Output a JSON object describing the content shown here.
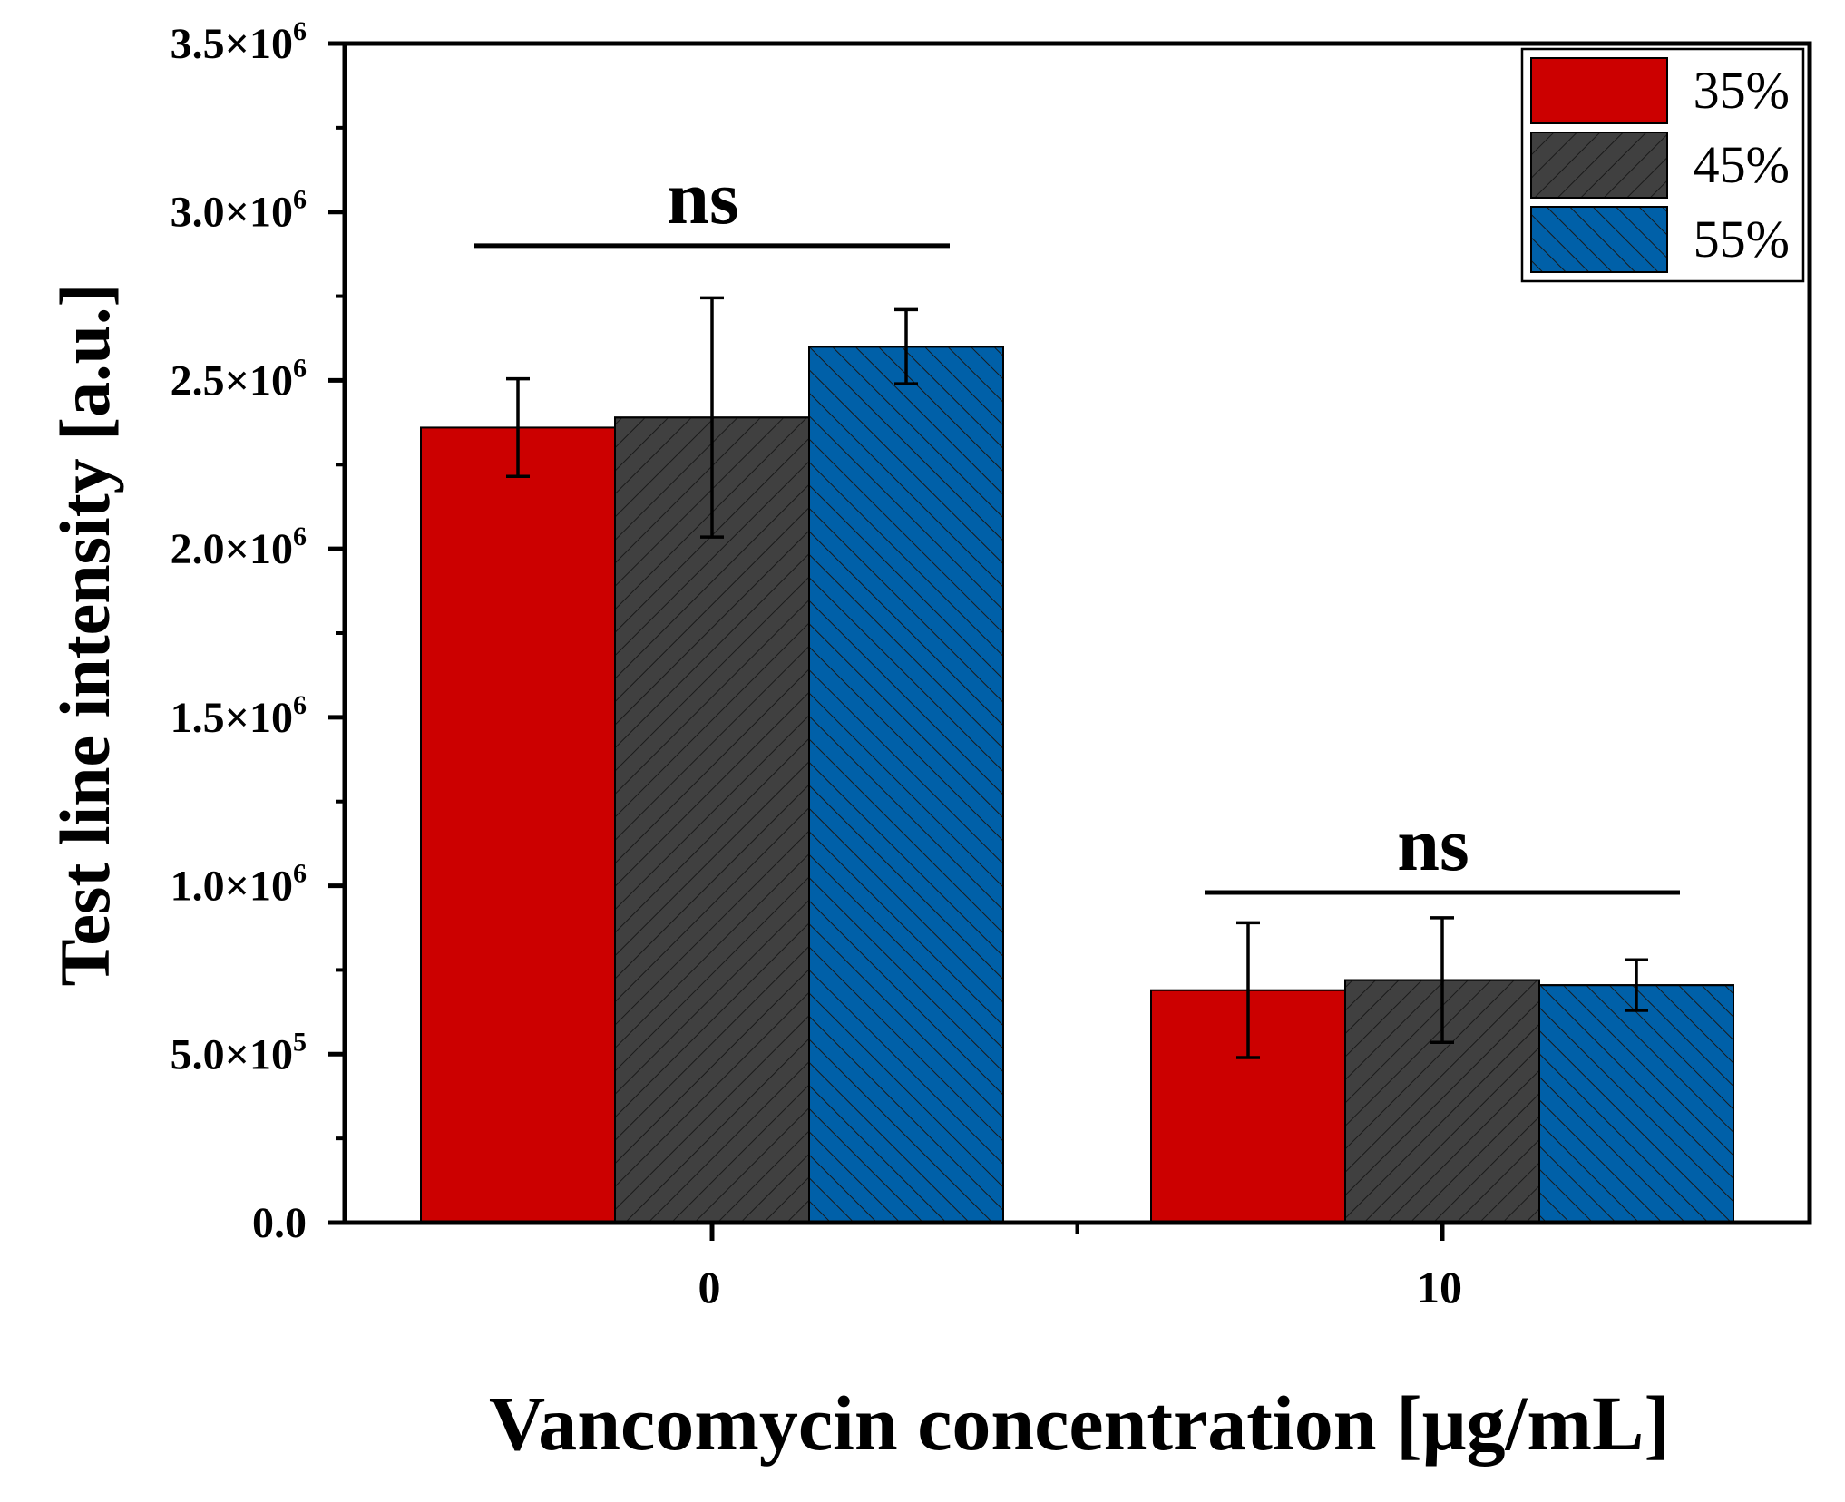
{
  "chart_data": {
    "type": "bar",
    "xlabel": "Vancomycin concentration [μg/mL]",
    "ylabel": "Test line intensity [a.u.]",
    "categories": [
      "0",
      "10"
    ],
    "ylim": [
      0,
      3500000
    ],
    "yticks": [
      {
        "value": 0,
        "mant": "0.0",
        "exp": ""
      },
      {
        "value": 500000,
        "mant": "5.0×10",
        "exp": "5"
      },
      {
        "value": 1000000,
        "mant": "1.0×10",
        "exp": "6"
      },
      {
        "value": 1500000,
        "mant": "1.5×10",
        "exp": "6"
      },
      {
        "value": 2000000,
        "mant": "2.0×10",
        "exp": "6"
      },
      {
        "value": 2500000,
        "mant": "2.5×10",
        "exp": "6"
      },
      {
        "value": 3000000,
        "mant": "3.0×10",
        "exp": "6"
      },
      {
        "value": 3500000,
        "mant": "3.5×10",
        "exp": "6"
      }
    ],
    "series": [
      {
        "name": "35%",
        "color": "#cc0000",
        "pattern": "none",
        "values": [
          2360000,
          690000
        ],
        "errors": [
          145000,
          200000
        ]
      },
      {
        "name": "45%",
        "color": "#404040",
        "pattern": "hatch-forward",
        "values": [
          2390000,
          720000
        ],
        "errors": [
          355000,
          185000
        ]
      },
      {
        "name": "55%",
        "color": "#0060a8",
        "pattern": "hatch-back",
        "values": [
          2600000,
          705000
        ],
        "errors": [
          110000,
          75000
        ]
      }
    ],
    "annotations": [
      {
        "text": "ns",
        "category": "0",
        "level": 2900000
      },
      {
        "text": "ns",
        "category": "10",
        "level": 980000
      }
    ],
    "legend_position": "top-right"
  }
}
